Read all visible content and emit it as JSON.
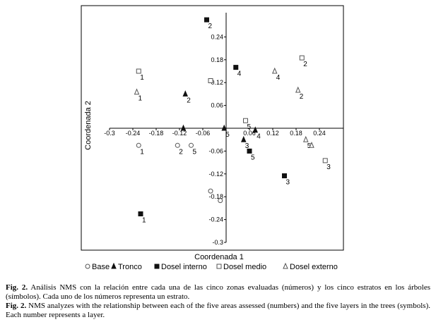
{
  "chart_data": {
    "type": "scatter",
    "title": "",
    "xlabel": "Coordenada 1",
    "ylabel": "Coordenada 2",
    "xlim": [
      -0.3,
      0.3
    ],
    "ylim": [
      -0.3,
      0.3
    ],
    "x_ticks": [
      -0.3,
      -0.24,
      -0.18,
      -0.12,
      -0.06,
      0.06,
      0.12,
      0.18,
      0.24
    ],
    "x_tick_labels": [
      "-0.3",
      "-0.24",
      "-0.18",
      "-0.12",
      "-0.06",
      "0.06",
      "0.12",
      "0.18",
      "0.24"
    ],
    "y_ticks": [
      0.24,
      0.18,
      0.12,
      0.06,
      -0.06,
      -0.12,
      -0.18,
      -0.24,
      -0.3
    ],
    "y_tick_labels": [
      "0.24",
      "0.18",
      "0.12",
      "0.06",
      "-0.06",
      "-0.12",
      "-0.18",
      "-0.24",
      "-0.3"
    ],
    "grid": false,
    "legend_position": "bottom",
    "series": [
      {
        "name": "Base",
        "marker": "circle-open",
        "points": [
          {
            "x": -0.225,
            "y": -0.045,
            "label": "1"
          },
          {
            "x": -0.125,
            "y": -0.045,
            "label": "2"
          },
          {
            "x": -0.09,
            "y": -0.045,
            "label": "5"
          },
          {
            "x": -0.04,
            "y": -0.165,
            "label": ""
          },
          {
            "x": -0.015,
            "y": -0.19,
            "label": ""
          }
        ]
      },
      {
        "name": "Tronco",
        "marker": "triangle-filled",
        "points": [
          {
            "x": -0.105,
            "y": 0.09,
            "label": "2"
          },
          {
            "x": -0.11,
            "y": 0.0,
            "label": ""
          },
          {
            "x": -0.005,
            "y": 0.0,
            "label": "5"
          },
          {
            "x": 0.075,
            "y": -0.005,
            "label": "4"
          },
          {
            "x": 0.045,
            "y": -0.03,
            "label": "3"
          }
        ]
      },
      {
        "name": "Dosel interno",
        "marker": "square-filled",
        "points": [
          {
            "x": -0.05,
            "y": 0.285,
            "label": "2"
          },
          {
            "x": 0.025,
            "y": 0.16,
            "label": "4"
          },
          {
            "x": 0.06,
            "y": -0.06,
            "label": "5"
          },
          {
            "x": 0.15,
            "y": -0.125,
            "label": "3"
          },
          {
            "x": -0.22,
            "y": -0.225,
            "label": "1"
          }
        ]
      },
      {
        "name": "Dosel medio",
        "marker": "square-open",
        "points": [
          {
            "x": -0.225,
            "y": 0.15,
            "label": "1"
          },
          {
            "x": 0.195,
            "y": 0.185,
            "label": "2"
          },
          {
            "x": -0.04,
            "y": 0.125,
            "label": ""
          },
          {
            "x": 0.05,
            "y": 0.02,
            "label": "5"
          },
          {
            "x": 0.255,
            "y": -0.085,
            "label": "3"
          }
        ]
      },
      {
        "name": "Dosel externo",
        "marker": "triangle-open",
        "points": [
          {
            "x": -0.23,
            "y": 0.095,
            "label": "1"
          },
          {
            "x": 0.125,
            "y": 0.15,
            "label": "4"
          },
          {
            "x": 0.185,
            "y": 0.1,
            "label": "2"
          },
          {
            "x": 0.205,
            "y": -0.03,
            "label": "5"
          },
          {
            "x": 0.22,
            "y": -0.045,
            "label": ""
          }
        ]
      }
    ]
  },
  "caption": {
    "es_prefix": "Fig. 2.",
    "es_text": " Análisis NMS con la relación entre cada una de las cinco zonas evaluadas (números) y los cinco estratos en los árboles (símbolos). Cada uno de los números representa un estrato.",
    "en_prefix": "Fig. 2.",
    "en_text": " NMS analyzes with the relationship between each of the five areas assessed (numbers) and the five layers in the trees (symbols). Each number represents a layer."
  }
}
